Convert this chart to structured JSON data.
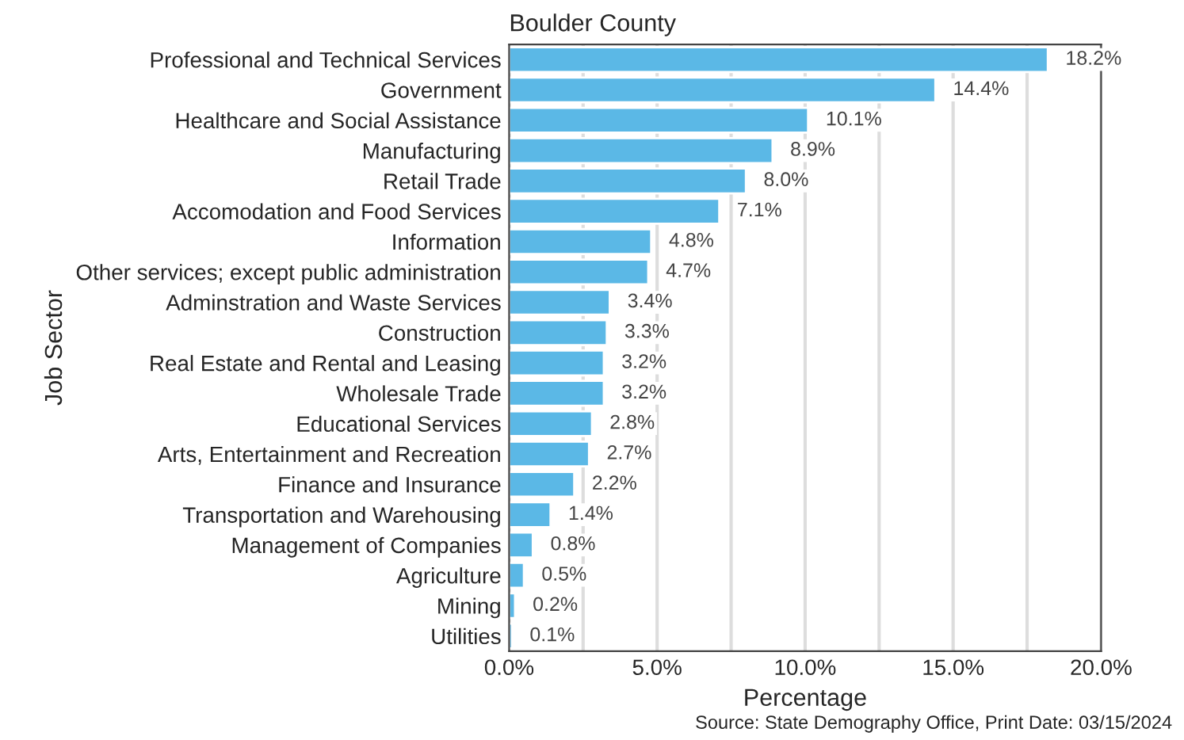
{
  "chart_data": {
    "type": "bar",
    "orientation": "horizontal",
    "title": "Boulder County",
    "xlabel": "Percentage",
    "ylabel": "Job Sector",
    "categories": [
      "Professional and Technical Services",
      "Government",
      "Healthcare and Social Assistance",
      "Manufacturing",
      "Retail Trade",
      "Accomodation and Food Services",
      "Information",
      "Other services; except public administration",
      "Adminstration and Waste Services",
      "Construction",
      "Real Estate and Rental and Leasing",
      "Wholesale Trade",
      "Educational Services",
      "Arts, Entertainment and Recreation",
      "Finance and Insurance",
      "Transportation and Warehousing",
      "Management of Companies",
      "Agriculture",
      "Mining",
      "Utilities"
    ],
    "values": [
      18.2,
      14.4,
      10.1,
      8.9,
      8.0,
      7.1,
      4.8,
      4.7,
      3.4,
      3.3,
      3.2,
      3.2,
      2.8,
      2.7,
      2.2,
      1.4,
      0.8,
      0.5,
      0.2,
      0.1
    ],
    "value_labels": [
      "18.2%",
      "14.4%",
      "10.1%",
      "8.9%",
      "8.0%",
      "7.1%",
      "4.8%",
      "4.7%",
      "3.4%",
      "3.3%",
      "3.2%",
      "3.2%",
      "2.8%",
      "2.7%",
      "2.2%",
      "1.4%",
      "0.8%",
      "0.5%",
      "0.2%",
      "0.1%"
    ],
    "color": "#5bb8e6",
    "xlim": [
      0,
      20
    ],
    "xticks": [
      {
        "value": 0,
        "label": "0.0%"
      },
      {
        "value": 2.5,
        "label": null
      },
      {
        "value": 5,
        "label": "5.0%"
      },
      {
        "value": 7.5,
        "label": null
      },
      {
        "value": 10,
        "label": "10.0%"
      },
      {
        "value": 12.5,
        "label": null
      },
      {
        "value": 15,
        "label": "15.0%"
      },
      {
        "value": 17.5,
        "label": null
      },
      {
        "value": 20,
        "label": "20.0%"
      }
    ],
    "grid": "x",
    "annotations": [
      "Source: State Demography Office, Print Date: 03/15/2024"
    ]
  }
}
